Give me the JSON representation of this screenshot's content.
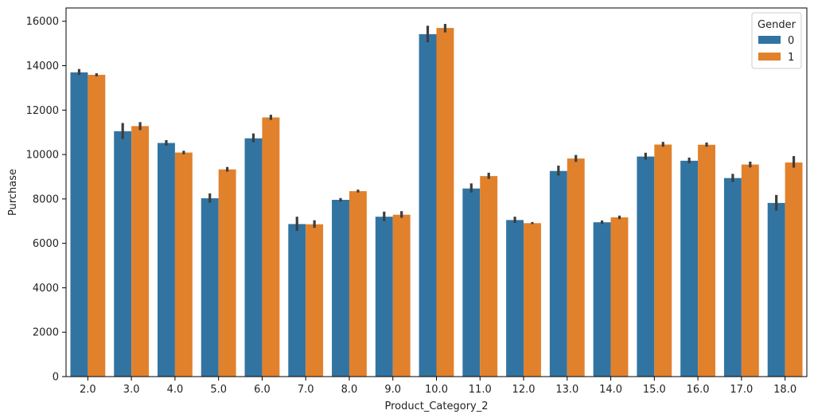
{
  "chart_data": {
    "type": "bar",
    "xlabel": "Product_Category_2",
    "ylabel": "Purchase",
    "ylim": [
      0,
      16600
    ],
    "yticks": [
      0,
      2000,
      4000,
      6000,
      8000,
      10000,
      12000,
      14000,
      16000
    ],
    "categories": [
      "2.0",
      "3.0",
      "4.0",
      "5.0",
      "6.0",
      "7.0",
      "8.0",
      "9.0",
      "10.0",
      "11.0",
      "12.0",
      "13.0",
      "14.0",
      "15.0",
      "16.0",
      "17.0",
      "18.0"
    ],
    "series": [
      {
        "name": "0",
        "color": "#3274a1",
        "values": [
          13700,
          11050,
          10520,
          8030,
          10730,
          6870,
          7960,
          7200,
          15420,
          8470,
          7050,
          9260,
          6950,
          9910,
          9720,
          8940,
          7820
        ],
        "ci_low": [
          13580,
          10700,
          10400,
          7830,
          10550,
          6560,
          7880,
          7000,
          15050,
          8290,
          6920,
          9050,
          6870,
          9770,
          9600,
          8760,
          7470
        ],
        "ci_high": [
          13850,
          11420,
          10650,
          8250,
          10950,
          7200,
          8040,
          7430,
          15800,
          8700,
          7200,
          9500,
          7030,
          10080,
          9860,
          9130,
          8180
        ]
      },
      {
        "name": "1",
        "color": "#e1812c",
        "values": [
          13590,
          11280,
          10090,
          9330,
          11670,
          6860,
          8350,
          7290,
          15700,
          9030,
          6910,
          9820,
          7170,
          10450,
          10440,
          9550,
          9640
        ],
        "ci_low": [
          13520,
          11100,
          10010,
          9230,
          11560,
          6700,
          8290,
          7150,
          15500,
          8900,
          6870,
          9670,
          7090,
          10350,
          10350,
          9420,
          9410
        ],
        "ci_high": [
          13660,
          11460,
          10170,
          9440,
          11790,
          7040,
          8420,
          7450,
          15880,
          9180,
          6960,
          9980,
          7250,
          10570,
          10540,
          9680,
          9930
        ]
      }
    ],
    "legend": {
      "title": "Gender",
      "position": "top-right"
    },
    "grid": false
  }
}
